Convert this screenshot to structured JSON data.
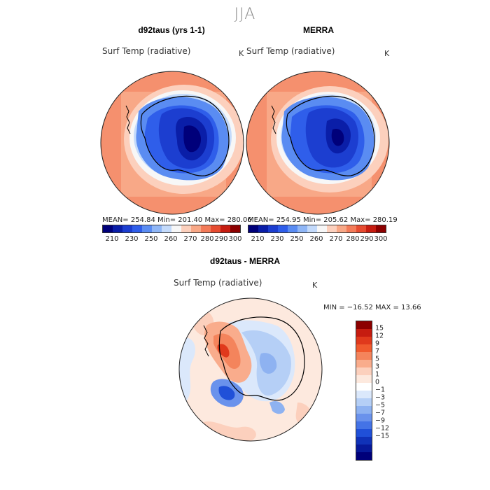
{
  "figure": {
    "season": "JJA",
    "variable": "Surf Temp (radiative)",
    "unit": "K"
  },
  "panels": [
    {
      "title": "d92taus (yrs 1-1)",
      "stats": "MEAN= 254.84   Min= 201.40   Max= 280.06"
    },
    {
      "title": "MERRA",
      "stats": "MEAN= 254.95   Min= 205.62   Max= 280.19"
    }
  ],
  "abs_colorbar": {
    "ticks": [
      "210",
      "230",
      "250",
      "260",
      "270",
      "280",
      "290",
      "300"
    ],
    "colors": [
      "#00007a",
      "#0a1ea8",
      "#1c3ed0",
      "#2f5eea",
      "#5a8cf2",
      "#8fb6f6",
      "#c3dafb",
      "#f7f7f7",
      "#fcd0bd",
      "#f8a887",
      "#f37b59",
      "#e64b30",
      "#c61c10",
      "#8c0000"
    ]
  },
  "diff": {
    "title": "d92taus - MERRA",
    "stats": "MIN = −16.52  MAX =   13.66",
    "ticks": [
      "15",
      "12",
      "9",
      "7",
      "5",
      "3",
      "1",
      "0",
      "−1",
      "−3",
      "−5",
      "−7",
      "−9",
      "−12",
      "−15"
    ],
    "colors": [
      "#8c0000",
      "#c61c10",
      "#e0391c",
      "#f05a2e",
      "#f4845c",
      "#f9ac8c",
      "#fcd0bd",
      "#fde9de",
      "#ffffff",
      "#dbe8fb",
      "#b5cff6",
      "#8eb2f1",
      "#6a92ec",
      "#4473e6",
      "#2050d8",
      "#1032b8",
      "#07199a",
      "#00007a"
    ]
  }
}
